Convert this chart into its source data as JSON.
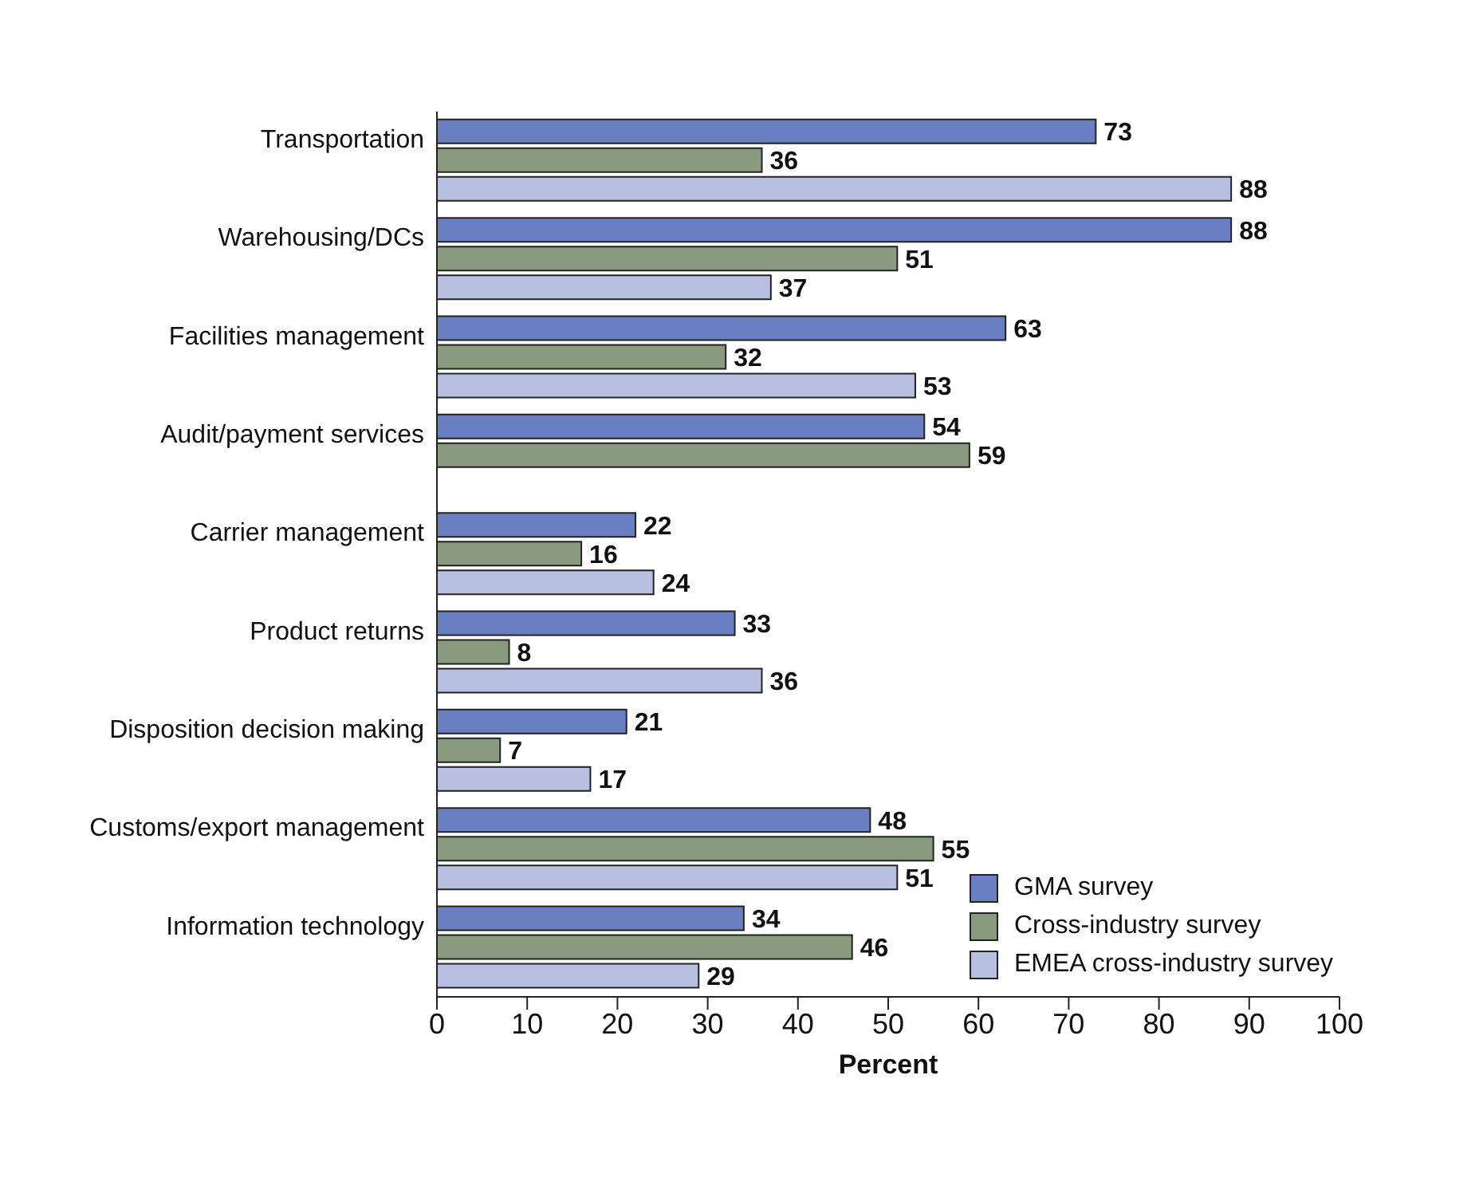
{
  "chart_data": {
    "type": "bar",
    "orientation": "horizontal",
    "xlabel": "Percent",
    "categories": [
      "Transportation",
      "Warehousing/DCs",
      "Facilities management",
      "Audit/payment services",
      "Carrier management",
      "Product returns",
      "Disposition decision making",
      "Customs/export management",
      "Information technology"
    ],
    "series": [
      {
        "name": "GMA survey",
        "color": "#6a7fc1",
        "values": [
          73,
          88,
          63,
          54,
          22,
          33,
          21,
          48,
          34
        ]
      },
      {
        "name": "Cross-industry survey",
        "color": "#8a9a7e",
        "values": [
          36,
          51,
          32,
          59,
          16,
          8,
          7,
          55,
          46
        ]
      },
      {
        "name": "EMEA cross-industry survey",
        "color": "#b8bfe0",
        "values": [
          88,
          37,
          53,
          null,
          24,
          36,
          17,
          51,
          29
        ]
      }
    ],
    "xlim": [
      0,
      100
    ],
    "xticks": [
      0,
      10,
      20,
      30,
      40,
      50,
      60,
      70,
      80,
      90,
      100
    ],
    "data_labels": true,
    "legend": "bottom right",
    "grid": false
  }
}
